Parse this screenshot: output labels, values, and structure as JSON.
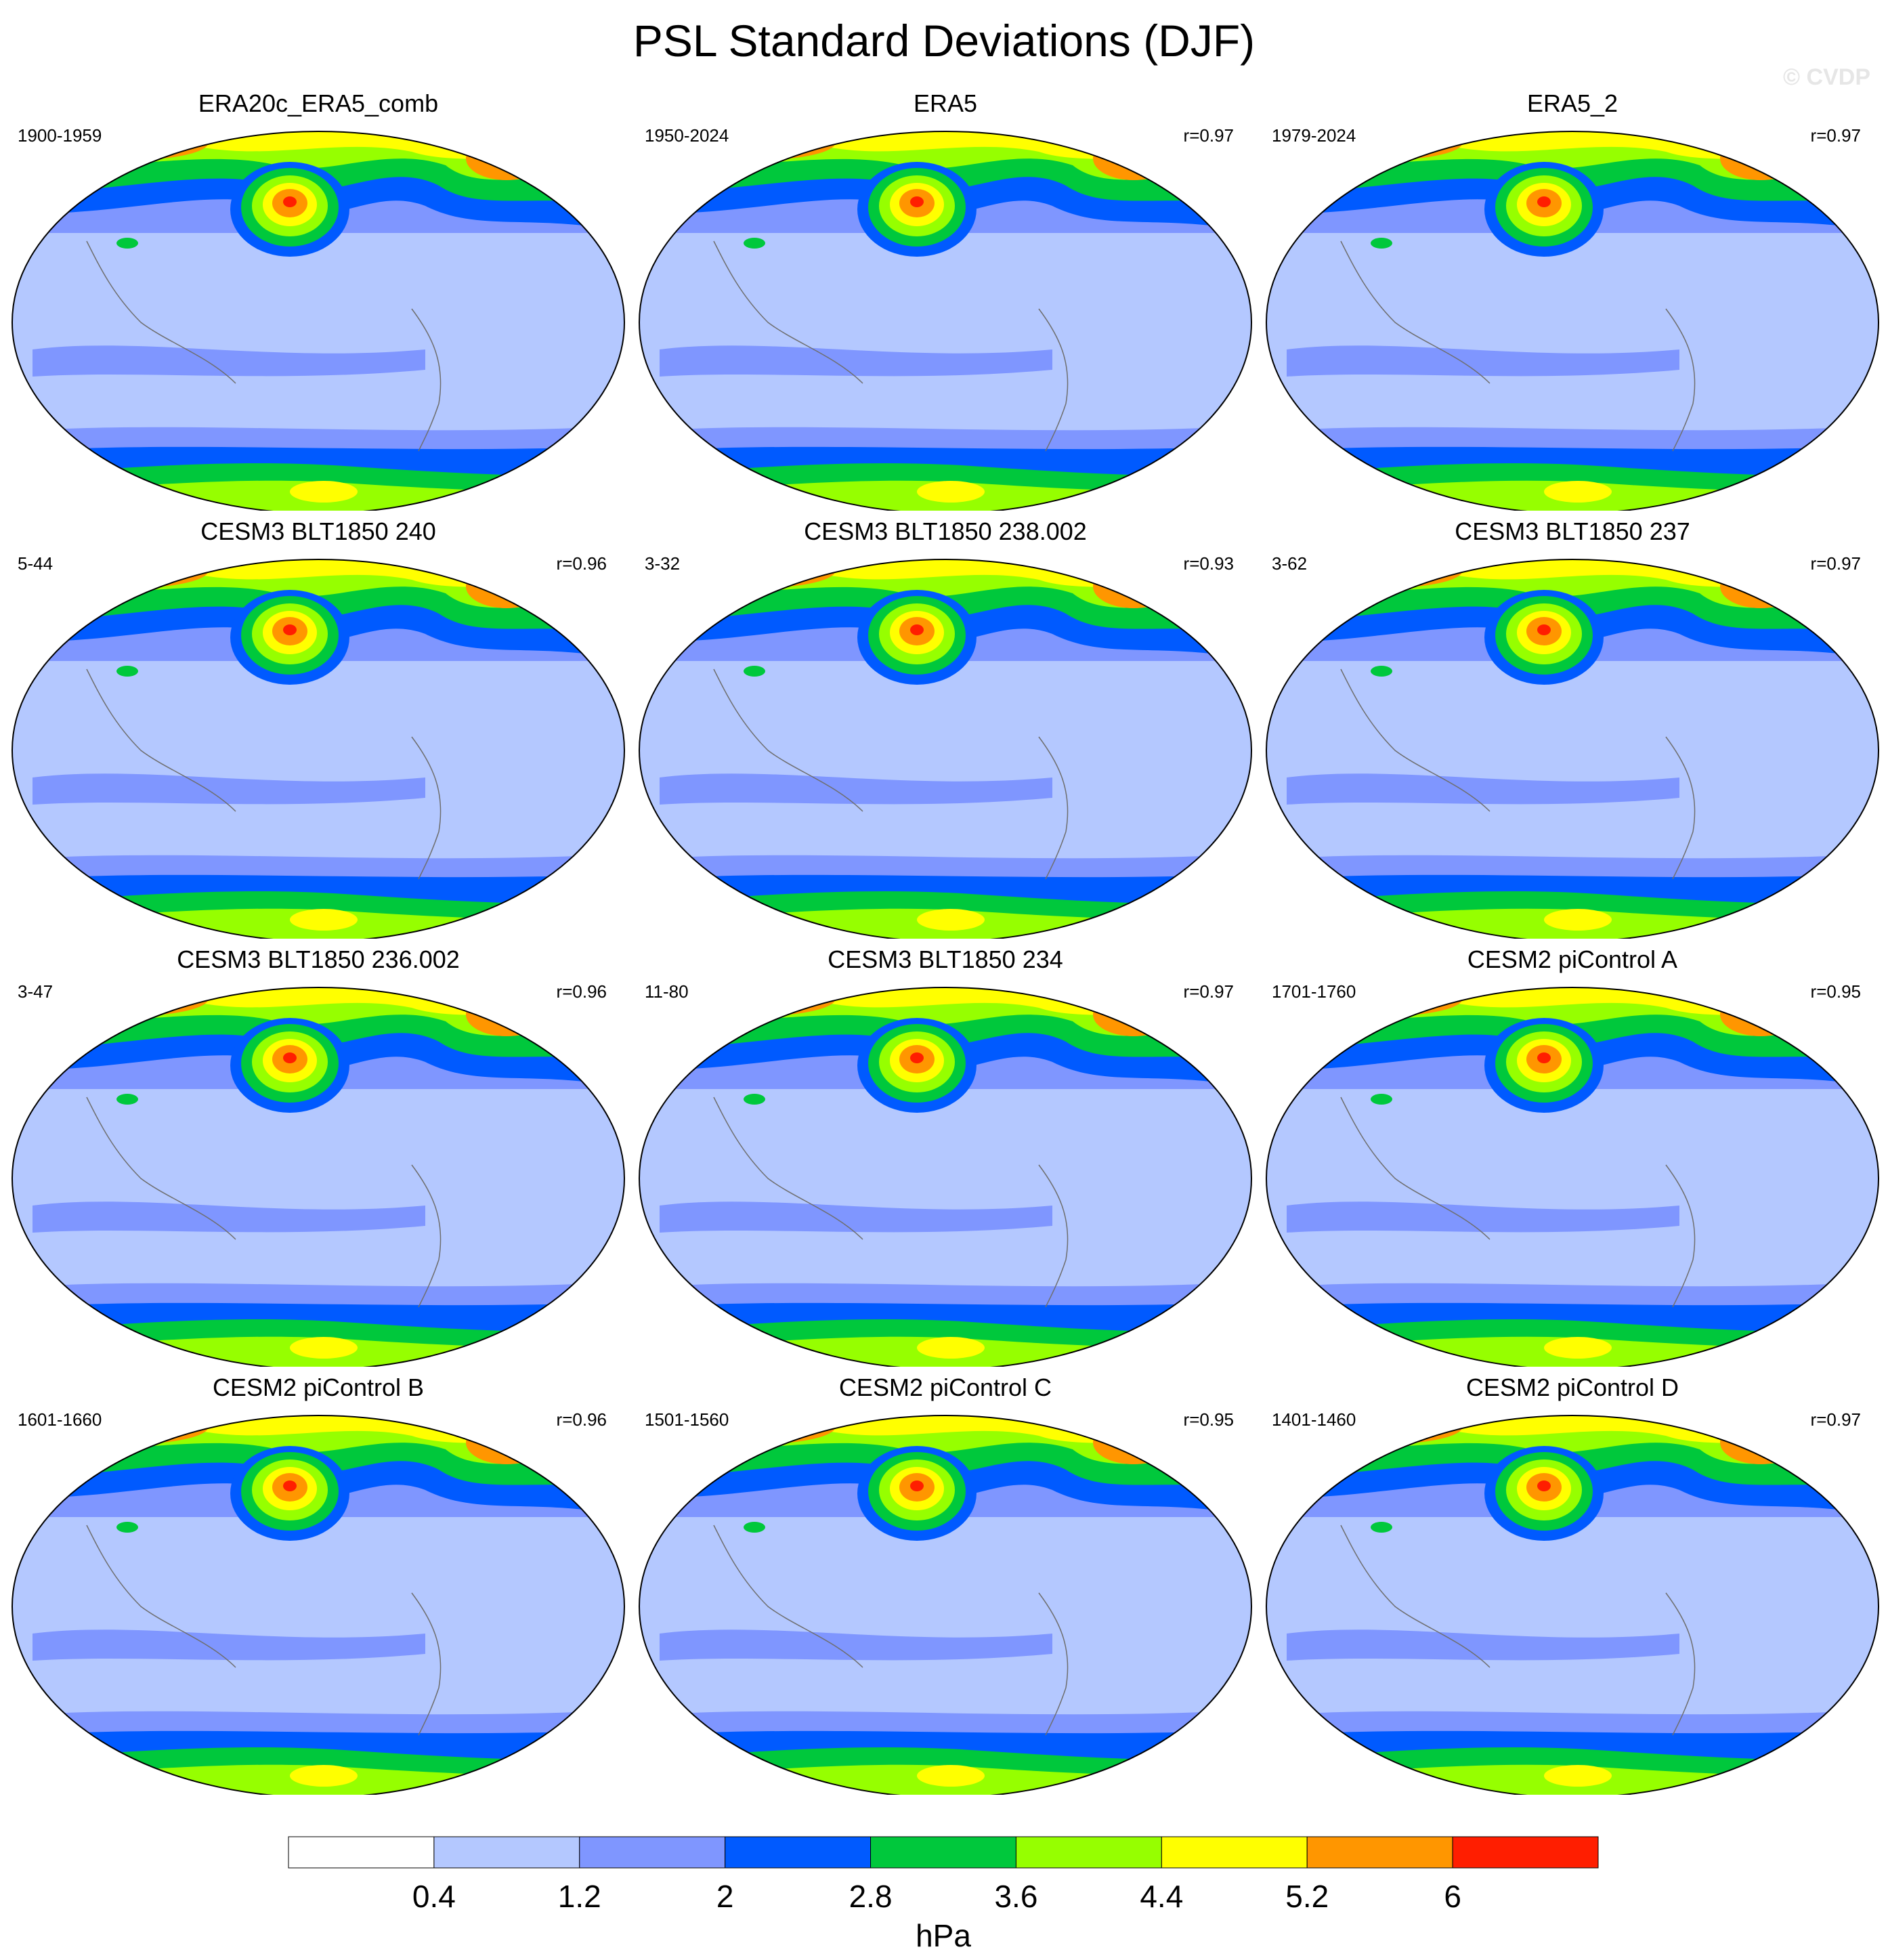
{
  "title": "PSL Standard Deviations (DJF)",
  "watermark": "© CVDP",
  "colorbar": {
    "labels": [
      "0.4",
      "1.2",
      "2",
      "2.8",
      "3.6",
      "4.4",
      "5.2",
      "6"
    ],
    "unit": "hPa",
    "colors": [
      "#ffffff",
      "#b4c8ff",
      "#7f96ff",
      "#005aff",
      "#00c83c",
      "#96ff00",
      "#ffff00",
      "#ff9600",
      "#ff1e00"
    ]
  },
  "panels": [
    {
      "title": "ERA20c_ERA5_comb",
      "years": "1900-1959",
      "corr": ""
    },
    {
      "title": "ERA5",
      "years": "1950-2024",
      "corr": "r=0.97"
    },
    {
      "title": "ERA5_2",
      "years": "1979-2024",
      "corr": "r=0.97"
    },
    {
      "title": "CESM3 BLT1850 240",
      "years": "5-44",
      "corr": "r=0.96"
    },
    {
      "title": "CESM3 BLT1850 238.002",
      "years": "3-32",
      "corr": "r=0.93"
    },
    {
      "title": "CESM3 BLT1850 237",
      "years": "3-62",
      "corr": "r=0.97"
    },
    {
      "title": "CESM3 BLT1850 236.002",
      "years": "3-47",
      "corr": "r=0.96"
    },
    {
      "title": "CESM3 BLT1850 234",
      "years": "11-80",
      "corr": "r=0.97"
    },
    {
      "title": "CESM2 piControl A",
      "years": "1701-1760",
      "corr": "r=0.95"
    },
    {
      "title": "CESM2 piControl B",
      "years": "1601-1660",
      "corr": "r=0.96"
    },
    {
      "title": "CESM2 piControl C",
      "years": "1501-1560",
      "corr": "r=0.95"
    },
    {
      "title": "CESM2 piControl D",
      "years": "1401-1460",
      "corr": "r=0.97"
    }
  ]
}
